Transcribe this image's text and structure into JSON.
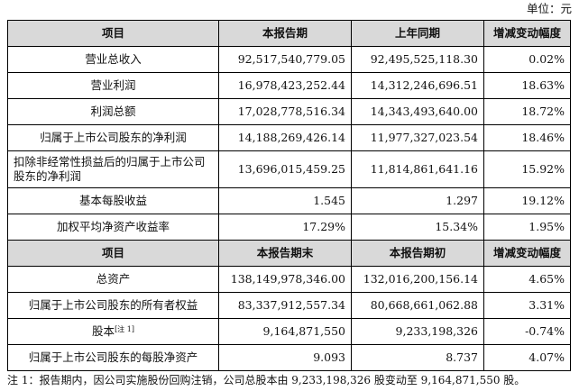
{
  "unit_label": "单位：元",
  "section1": {
    "headers": [
      "项目",
      "本报告期",
      "上年同期",
      "增减变动幅度"
    ],
    "rows": [
      {
        "item": "营业总收入",
        "current": "92,517,540,779.05",
        "prior": "92,495,525,118.30",
        "change": "0.02%"
      },
      {
        "item": "营业利润",
        "current": "16,978,423,252.44",
        "prior": "14,312,246,696.51",
        "change": "18.63%"
      },
      {
        "item": "利润总额",
        "current": "17,028,778,516.34",
        "prior": "14,343,493,640.00",
        "change": "18.72%"
      },
      {
        "item": "归属于上市公司股东的净利润",
        "current": "14,188,269,426.14",
        "prior": "11,977,327,023.54",
        "change": "18.46%"
      },
      {
        "item": "扣除非经常性损益后的归属于上市公司股东的净利润",
        "current": "13,696,015,459.25",
        "prior": "11,814,861,641.16",
        "change": "15.92%"
      },
      {
        "item": "基本每股收益",
        "current": "1.545",
        "prior": "1.297",
        "change": "19.12%"
      },
      {
        "item": "加权平均净资产收益率",
        "current": "17.29%",
        "prior": "15.34%",
        "change": "1.95%"
      }
    ]
  },
  "section2": {
    "headers": [
      "项目",
      "本报告期末",
      "本报告期初",
      "增减变动幅度"
    ],
    "rows": [
      {
        "item": "总资产",
        "current": "138,149,978,346.00",
        "prior": "132,016,200,156.14",
        "change": "4.65%"
      },
      {
        "item": "归属于上市公司股东的所有者权益",
        "current": "83,337,912,557.34",
        "prior": "80,668,661,062.88",
        "change": "3.31%"
      },
      {
        "item": "股本",
        "footnote": "[注 1]",
        "current": "9,164,871,550",
        "prior": "9,233,198,326",
        "change": "-0.74%"
      },
      {
        "item": "归属于上市公司股东的每股净资产",
        "current": "9.093",
        "prior": "8.737",
        "change": "4.07%"
      }
    ]
  },
  "footnote_text": "注 1：报告期内，因公司实施股份回购注销，公司总股本由 9,233,198,326 股变动至 9,164,871,550 股。"
}
